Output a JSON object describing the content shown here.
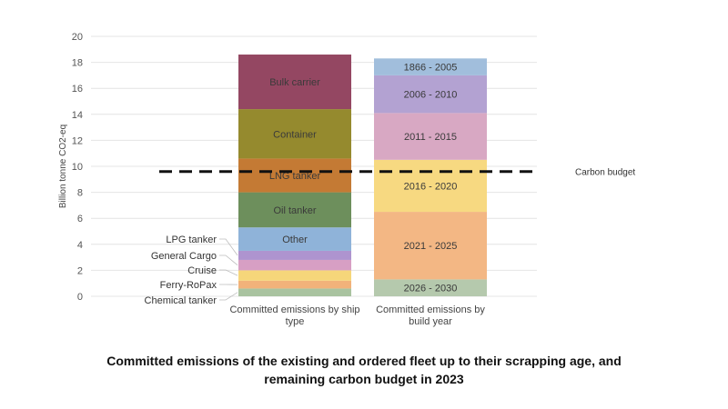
{
  "caption": {
    "line1": "Committed emissions of the existing and ordered fleet up to their scrapping age, and",
    "line2": "remaining carbon budget in 2023"
  },
  "chart_data": {
    "type": "bar",
    "stacked": true,
    "ylabel": "Billion tonne CO2-eq",
    "ylim": [
      0,
      20
    ],
    "yticks": [
      0,
      2,
      4,
      6,
      8,
      10,
      12,
      14,
      16,
      18,
      20
    ],
    "grid": "horizontal",
    "bars": [
      {
        "category_lines": [
          "Committed emissions by ship",
          "type"
        ],
        "segments": [
          {
            "name": "Chemical tanker",
            "value": 0.6,
            "color": "#a9c3a0",
            "label_position": "left"
          },
          {
            "name": "Ferry-RoPax",
            "value": 0.6,
            "color": "#f2b27a",
            "label_position": "left"
          },
          {
            "name": "Cruise",
            "value": 0.8,
            "color": "#f6d67a",
            "label_position": "left"
          },
          {
            "name": "General Cargo",
            "value": 0.8,
            "color": "#d79fc4",
            "label_position": "left"
          },
          {
            "name": "LPG tanker",
            "value": 0.7,
            "color": "#ae94cf",
            "label_position": "left"
          },
          {
            "name": "Other",
            "value": 1.8,
            "color": "#8fb3d9",
            "label_position": "inside"
          },
          {
            "name": "Oil tanker",
            "value": 2.7,
            "color": "#6d8f5c",
            "label_position": "inside"
          },
          {
            "name": "LNG tanker",
            "value": 2.6,
            "color": "#c47a34",
            "label_position": "inside"
          },
          {
            "name": "Container",
            "value": 3.8,
            "color": "#958a2e",
            "label_position": "inside"
          },
          {
            "name": "Bulk carrier",
            "value": 4.2,
            "color": "#944762",
            "label_position": "inside"
          }
        ]
      },
      {
        "category_lines": [
          "Committed emissions by",
          "build year"
        ],
        "segments": [
          {
            "name": "2026 - 2030",
            "value": 1.3,
            "color": "#b5c9ad",
            "label_position": "inside"
          },
          {
            "name": "2021 - 2025",
            "value": 5.2,
            "color": "#f3b784",
            "label_position": "inside"
          },
          {
            "name": "2016 - 2020",
            "value": 4.0,
            "color": "#f7d981",
            "label_position": "inside"
          },
          {
            "name": "2011 - 2015",
            "value": 3.6,
            "color": "#d8a8c3",
            "label_position": "inside"
          },
          {
            "name": "2006 - 2010",
            "value": 2.9,
            "color": "#b3a2d2",
            "label_position": "inside"
          },
          {
            "name": "1866 - 2005",
            "value": 1.3,
            "color": "#a1bedc",
            "label_position": "inside"
          }
        ]
      }
    ],
    "reference_line": {
      "label": "Carbon budget",
      "value": 9.6,
      "style": "dashed",
      "color": "#111111"
    }
  }
}
